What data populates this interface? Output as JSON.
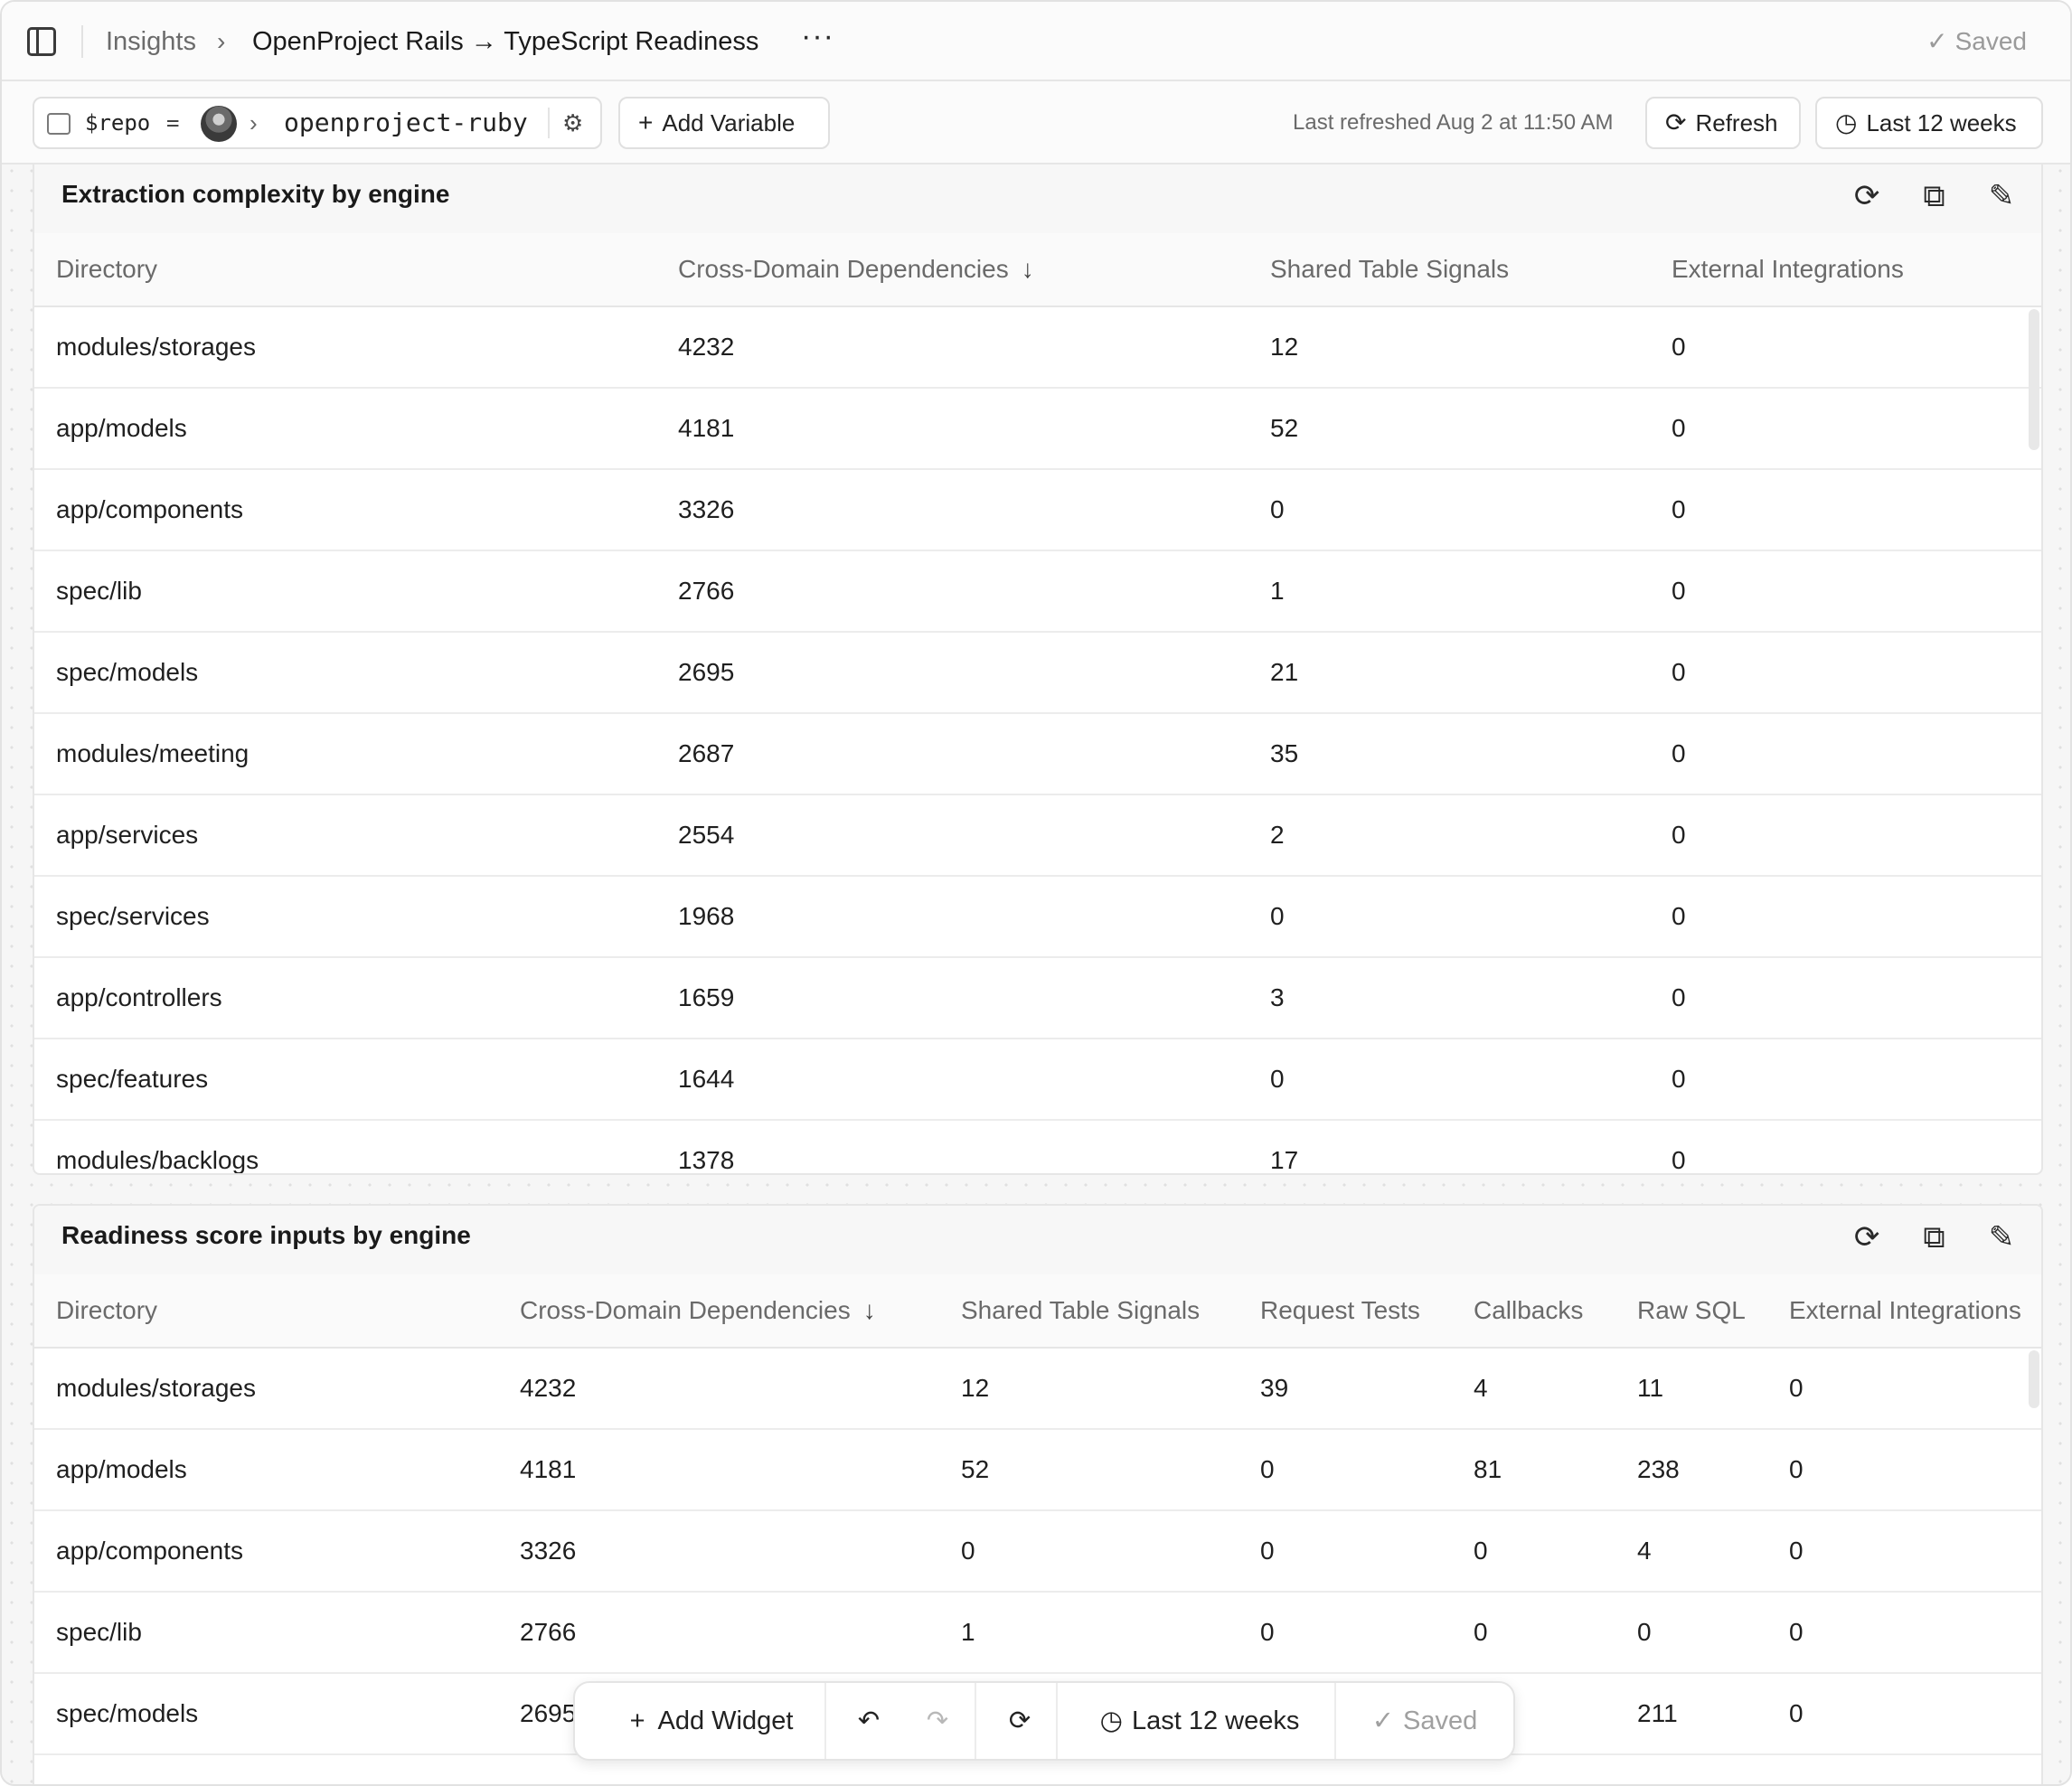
{
  "header": {
    "breadcrumb_root": "Insights",
    "breadcrumb_sep": "›",
    "title": "OpenProject Rails → TypeScript Readiness",
    "more": "···",
    "saved": "Saved"
  },
  "variables": {
    "name": "$repo",
    "eq": "=",
    "value": "openproject-ruby",
    "add_label": "Add Variable",
    "last_refreshed": "Last refreshed Aug 2 at 11:50 AM",
    "refresh_label": "Refresh",
    "range_label": "Last 12 weeks"
  },
  "icons": {
    "sidebar": "sidebar-toggle-icon",
    "repo": "repo-icon",
    "gear": "⚙",
    "plus": "+",
    "refresh": "⟳",
    "clock": "◷",
    "check": "✓",
    "duplicate": "⧉",
    "edit": "✎",
    "sort_desc": "↓",
    "undo": "↶",
    "redo": "↷"
  },
  "widget1": {
    "title": "Extraction complexity by engine",
    "columns": [
      "Directory",
      "Cross-Domain Dependencies",
      "Shared Table Signals",
      "External Integrations"
    ],
    "rows": [
      [
        "modules/storages",
        "4232",
        "12",
        "0"
      ],
      [
        "app/models",
        "4181",
        "52",
        "0"
      ],
      [
        "app/components",
        "3326",
        "0",
        "0"
      ],
      [
        "spec/lib",
        "2766",
        "1",
        "0"
      ],
      [
        "spec/models",
        "2695",
        "21",
        "0"
      ],
      [
        "modules/meeting",
        "2687",
        "35",
        "0"
      ],
      [
        "app/services",
        "2554",
        "2",
        "0"
      ],
      [
        "spec/services",
        "1968",
        "0",
        "0"
      ],
      [
        "app/controllers",
        "1659",
        "3",
        "0"
      ],
      [
        "spec/features",
        "1644",
        "0",
        "0"
      ],
      [
        "modules/backlogs",
        "1378",
        "17",
        "0"
      ]
    ]
  },
  "widget2": {
    "title": "Readiness score inputs by engine",
    "columns": [
      "Directory",
      "Cross-Domain Dependencies",
      "Shared Table Signals",
      "Request Tests",
      "Callbacks",
      "Raw SQL",
      "External Integrations"
    ],
    "rows": [
      [
        "modules/storages",
        "4232",
        "12",
        "39",
        "4",
        "11",
        "0"
      ],
      [
        "app/models",
        "4181",
        "52",
        "0",
        "81",
        "238",
        "0"
      ],
      [
        "app/components",
        "3326",
        "0",
        "0",
        "0",
        "4",
        "0"
      ],
      [
        "spec/lib",
        "2766",
        "1",
        "0",
        "0",
        "0",
        "0"
      ],
      [
        "spec/models",
        "2695",
        "",
        "",
        "",
        "211",
        "0"
      ]
    ]
  },
  "floatbar": {
    "add_widget": "Add Widget",
    "range": "Last 12 weeks",
    "saved": "Saved"
  }
}
